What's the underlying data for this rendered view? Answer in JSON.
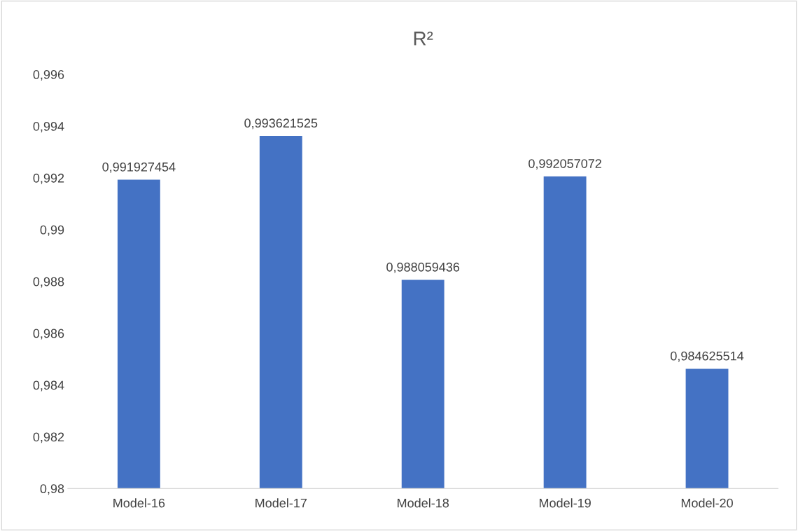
{
  "chart_data": {
    "type": "bar",
    "title": "R²",
    "categories": [
      "Model-16",
      "Model-17",
      "Model-18",
      "Model-19",
      "Model-20"
    ],
    "values": [
      0.991927454,
      0.993621525,
      0.988059436,
      0.992057072,
      0.984625514
    ],
    "value_labels": [
      "0,991927454",
      "0,993621525",
      "0,988059436",
      "0,992057072",
      "0,984625514"
    ],
    "color": "#4472c4",
    "ylim": [
      0.98,
      0.996
    ],
    "yticks": [
      {
        "value": 0.98,
        "label": "0,98"
      },
      {
        "value": 0.982,
        "label": "0,982"
      },
      {
        "value": 0.984,
        "label": "0,984"
      },
      {
        "value": 0.986,
        "label": "0,986"
      },
      {
        "value": 0.988,
        "label": "0,988"
      },
      {
        "value": 0.99,
        "label": "0,99"
      },
      {
        "value": 0.992,
        "label": "0,992"
      },
      {
        "value": 0.994,
        "label": "0,994"
      },
      {
        "value": 0.996,
        "label": "0,996"
      }
    ],
    "grid": false,
    "legend": false
  }
}
